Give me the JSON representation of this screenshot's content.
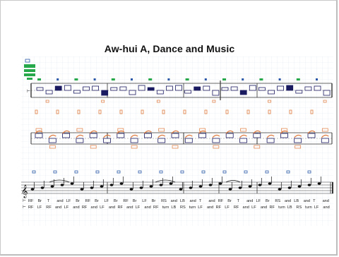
{
  "title": "Aw-hui A, Dance and Music",
  "staff_rows": [
    {
      "name": "top-notation-staff"
    },
    {
      "name": "middle-notation-staff"
    },
    {
      "name": "music-staff"
    }
  ],
  "step_labels": {
    "row1": [
      "RF",
      "Br",
      "T",
      "and",
      "LF",
      "Br",
      "RF",
      "Br",
      "LF",
      "Br",
      "RF",
      "Br",
      "LF",
      "Br",
      "RS",
      "and",
      "LB",
      "and",
      "T",
      "and",
      "RF",
      "Br",
      "T",
      "and",
      "LF",
      "Br",
      "RS",
      "and",
      "LB",
      "and",
      "T",
      "and"
    ],
    "row2": [
      "RF",
      "LF",
      "RF",
      "and",
      "LF",
      "and",
      "RF",
      "and",
      "LF",
      "and",
      "RF",
      "and",
      "LF",
      "and",
      "RF",
      "turn",
      "LB",
      "RS",
      "turn",
      "LF",
      "and",
      "RF",
      "LF",
      "RF",
      "and",
      "LF",
      "and",
      "RF",
      "turn",
      "LB",
      "RS",
      "turn",
      "LF",
      "and"
    ]
  },
  "colors": {
    "grid": "#dfe8f4",
    "staff": "#333333",
    "orange": "#e07a3c",
    "green": "#27a84a",
    "blue": "#2b58a8"
  }
}
